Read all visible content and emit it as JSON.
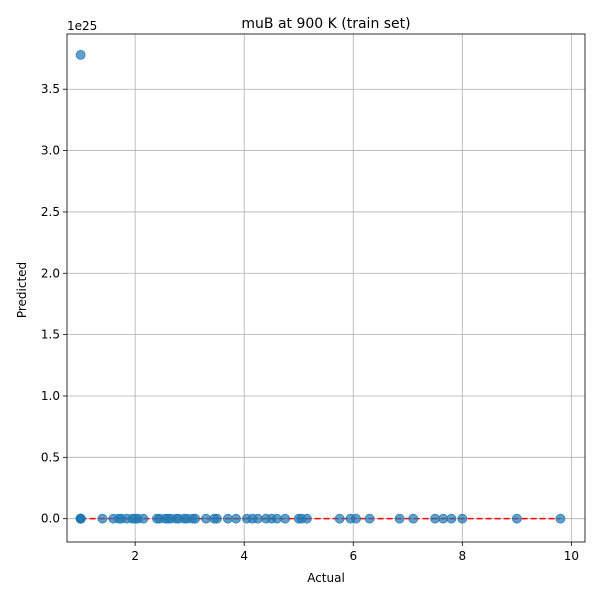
{
  "chart_data": {
    "type": "scatter",
    "title": "muB at 900 K (train set)",
    "xlabel": "Actual",
    "ylabel": "Predicted",
    "y_offset_label": "1e25",
    "xlim": [
      0.75,
      10.25
    ],
    "ylim": [
      -0.19,
      3.95
    ],
    "y_scale_note": "y values in units of 1e25",
    "xticks": [
      2,
      4,
      6,
      8,
      10
    ],
    "xtick_labels": [
      "2",
      "4",
      "6",
      "8",
      "10"
    ],
    "yticks": [
      0.0,
      0.5,
      1.0,
      1.5,
      2.0,
      2.5,
      3.0,
      3.5
    ],
    "ytick_labels": [
      "0.0",
      "0.5",
      "1.0",
      "1.5",
      "2.0",
      "2.5",
      "3.0",
      "3.5"
    ],
    "grid": true,
    "point_color": "#1f77b4",
    "reference_line": {
      "style": "dashed",
      "color": "#ff0000",
      "x": [
        1.0,
        9.8
      ],
      "y": [
        0.0,
        0.0
      ]
    },
    "points": {
      "x": [
        1.0,
        1.0,
        1.0,
        1.0,
        1.0,
        1.0,
        1.0,
        1.0,
        1.4,
        1.6,
        1.7,
        1.75,
        1.85,
        1.95,
        2.0,
        2.05,
        2.15,
        2.4,
        2.45,
        2.55,
        2.6,
        2.65,
        2.75,
        2.8,
        2.9,
        2.95,
        3.05,
        3.1,
        3.3,
        3.45,
        3.5,
        3.7,
        3.85,
        4.05,
        4.15,
        4.25,
        4.4,
        4.5,
        4.6,
        4.75,
        5.0,
        5.05,
        5.15,
        5.75,
        5.95,
        6.05,
        6.3,
        6.85,
        7.1,
        7.5,
        7.65,
        7.8,
        8.0,
        9.0,
        9.8
      ],
      "y": [
        3.78,
        0.0,
        0.0,
        0.0,
        0.0,
        0.0,
        0.0,
        0.0,
        0.0,
        0.0,
        0.0,
        0.0,
        0.0,
        0.0,
        0.0,
        0.0,
        0.0,
        0.0,
        0.0,
        0.0,
        0.0,
        0.0,
        0.0,
        0.0,
        0.0,
        0.0,
        0.0,
        0.0,
        0.0,
        0.0,
        0.0,
        0.0,
        0.0,
        0.0,
        0.0,
        0.0,
        0.0,
        0.0,
        0.0,
        0.0,
        0.0,
        0.0,
        0.0,
        0.0,
        0.0,
        0.0,
        0.0,
        0.0,
        0.0,
        0.0,
        0.0,
        0.0,
        0.0,
        0.0,
        0.0
      ]
    }
  }
}
